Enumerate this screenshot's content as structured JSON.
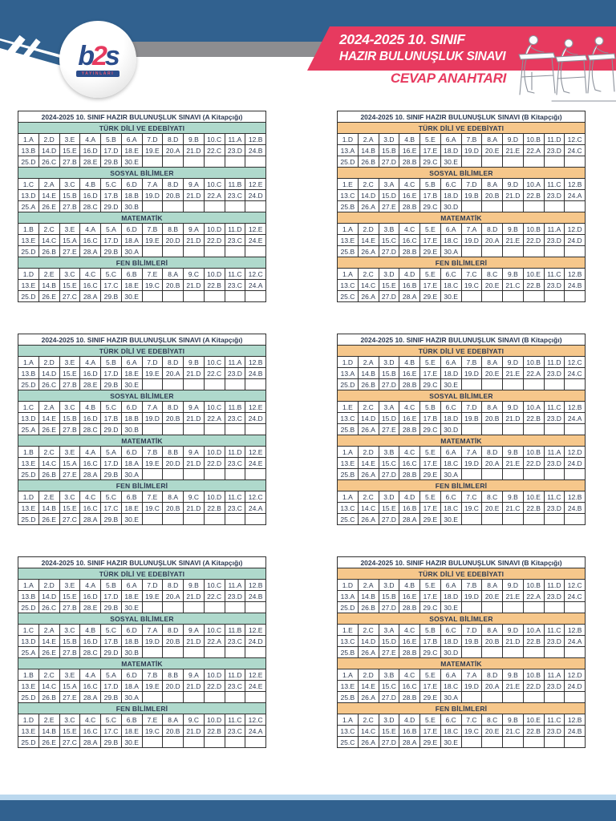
{
  "header": {
    "banner_line1": "2024-2025 10. SINIF",
    "banner_line2": "HAZIR BULUNUŞLUK SINAVI",
    "answer_key_label": "CEVAP ANAHTARI",
    "logo": {
      "part1": "b",
      "part2": "2",
      "part3": "s",
      "subtext": "YAYINLARI"
    }
  },
  "colors": {
    "header_blue": "#31618F",
    "title_blue": "#2B5E95",
    "teal": "#AFD9CC",
    "orange": "#F6C78B",
    "banner_red": "#E73A5F",
    "gray_bar": "#8D8D90",
    "footer_light": "#BBD8EE",
    "cell_text": "#2E3B52"
  },
  "tables": {
    "layout": [
      "A",
      "B",
      "A",
      "B",
      "A",
      "B"
    ],
    "choices_per_row": 12,
    "booklets": {
      "A": {
        "title": "2024-2025 10. SINIF HAZIR BULUNUŞLUK SINAVI (A Kitapçığı)",
        "sections": [
          {
            "name": "TÜRK DİLİ VE EDEBİYATI",
            "answers": [
              "A",
              "D",
              "E",
              "A",
              "B",
              "A",
              "D",
              "D",
              "B",
              "C",
              "A",
              "B",
              "B",
              "D",
              "E",
              "D",
              "D",
              "E",
              "E",
              "A",
              "D",
              "C",
              "D",
              "B",
              "D",
              "C",
              "B",
              "E",
              "B",
              "E"
            ]
          },
          {
            "name": "SOSYAL BİLİMLER",
            "answers": [
              "C",
              "A",
              "C",
              "B",
              "C",
              "D",
              "A",
              "D",
              "A",
              "C",
              "B",
              "E",
              "D",
              "E",
              "B",
              "D",
              "B",
              "B",
              "D",
              "B",
              "D",
              "A",
              "C",
              "D",
              "A",
              "E",
              "B",
              "C",
              "D",
              "B"
            ]
          },
          {
            "name": "MATEMATİK",
            "answers": [
              "B",
              "C",
              "E",
              "A",
              "A",
              "D",
              "B",
              "B",
              "A",
              "D",
              "D",
              "E",
              "E",
              "C",
              "A",
              "C",
              "D",
              "A",
              "E",
              "D",
              "D",
              "D",
              "C",
              "E",
              "D",
              "B",
              "E",
              "A",
              "B",
              "A"
            ]
          },
          {
            "name": "FEN BİLİMLERİ",
            "answers": [
              "D",
              "E",
              "C",
              "C",
              "C",
              "B",
              "E",
              "A",
              "C",
              "D",
              "C",
              "C",
              "E",
              "B",
              "E",
              "C",
              "C",
              "E",
              "C",
              "B",
              "D",
              "B",
              "C",
              "A",
              "D",
              "E",
              "C",
              "A",
              "B",
              "E"
            ]
          }
        ]
      },
      "B": {
        "title": "2024-2025 10. SINIF HAZIR BULUNUŞLUK SINAVI (B Kitapçığı)",
        "sections": [
          {
            "name": "TÜRK DİLİ VE EDEBİYATI",
            "answers": [
              "D",
              "A",
              "D",
              "B",
              "E",
              "A",
              "B",
              "A",
              "D",
              "B",
              "D",
              "C",
              "A",
              "B",
              "B",
              "E",
              "E",
              "D",
              "D",
              "E",
              "E",
              "A",
              "D",
              "C",
              "D",
              "B",
              "D",
              "B",
              "C",
              "E"
            ]
          },
          {
            "name": "SOSYAL BİLİMLER",
            "answers": [
              "E",
              "C",
              "A",
              "C",
              "B",
              "C",
              "D",
              "A",
              "D",
              "A",
              "C",
              "B",
              "C",
              "D",
              "D",
              "E",
              "B",
              "D",
              "B",
              "B",
              "D",
              "B",
              "D",
              "A",
              "B",
              "A",
              "E",
              "B",
              "C",
              "D"
            ]
          },
          {
            "name": "MATEMATİK",
            "answers": [
              "A",
              "D",
              "B",
              "C",
              "E",
              "A",
              "A",
              "D",
              "B",
              "B",
              "A",
              "D",
              "E",
              "E",
              "C",
              "C",
              "E",
              "C",
              "D",
              "A",
              "E",
              "D",
              "D",
              "D",
              "B",
              "A",
              "D",
              "B",
              "E",
              "A"
            ]
          },
          {
            "name": "FEN BİLİMLERİ",
            "answers": [
              "A",
              "C",
              "D",
              "D",
              "E",
              "C",
              "C",
              "C",
              "B",
              "E",
              "C",
              "B",
              "C",
              "C",
              "E",
              "B",
              "E",
              "C",
              "C",
              "E",
              "C",
              "B",
              "D",
              "B",
              "C",
              "A",
              "D",
              "A",
              "E",
              "E"
            ]
          }
        ]
      }
    }
  }
}
